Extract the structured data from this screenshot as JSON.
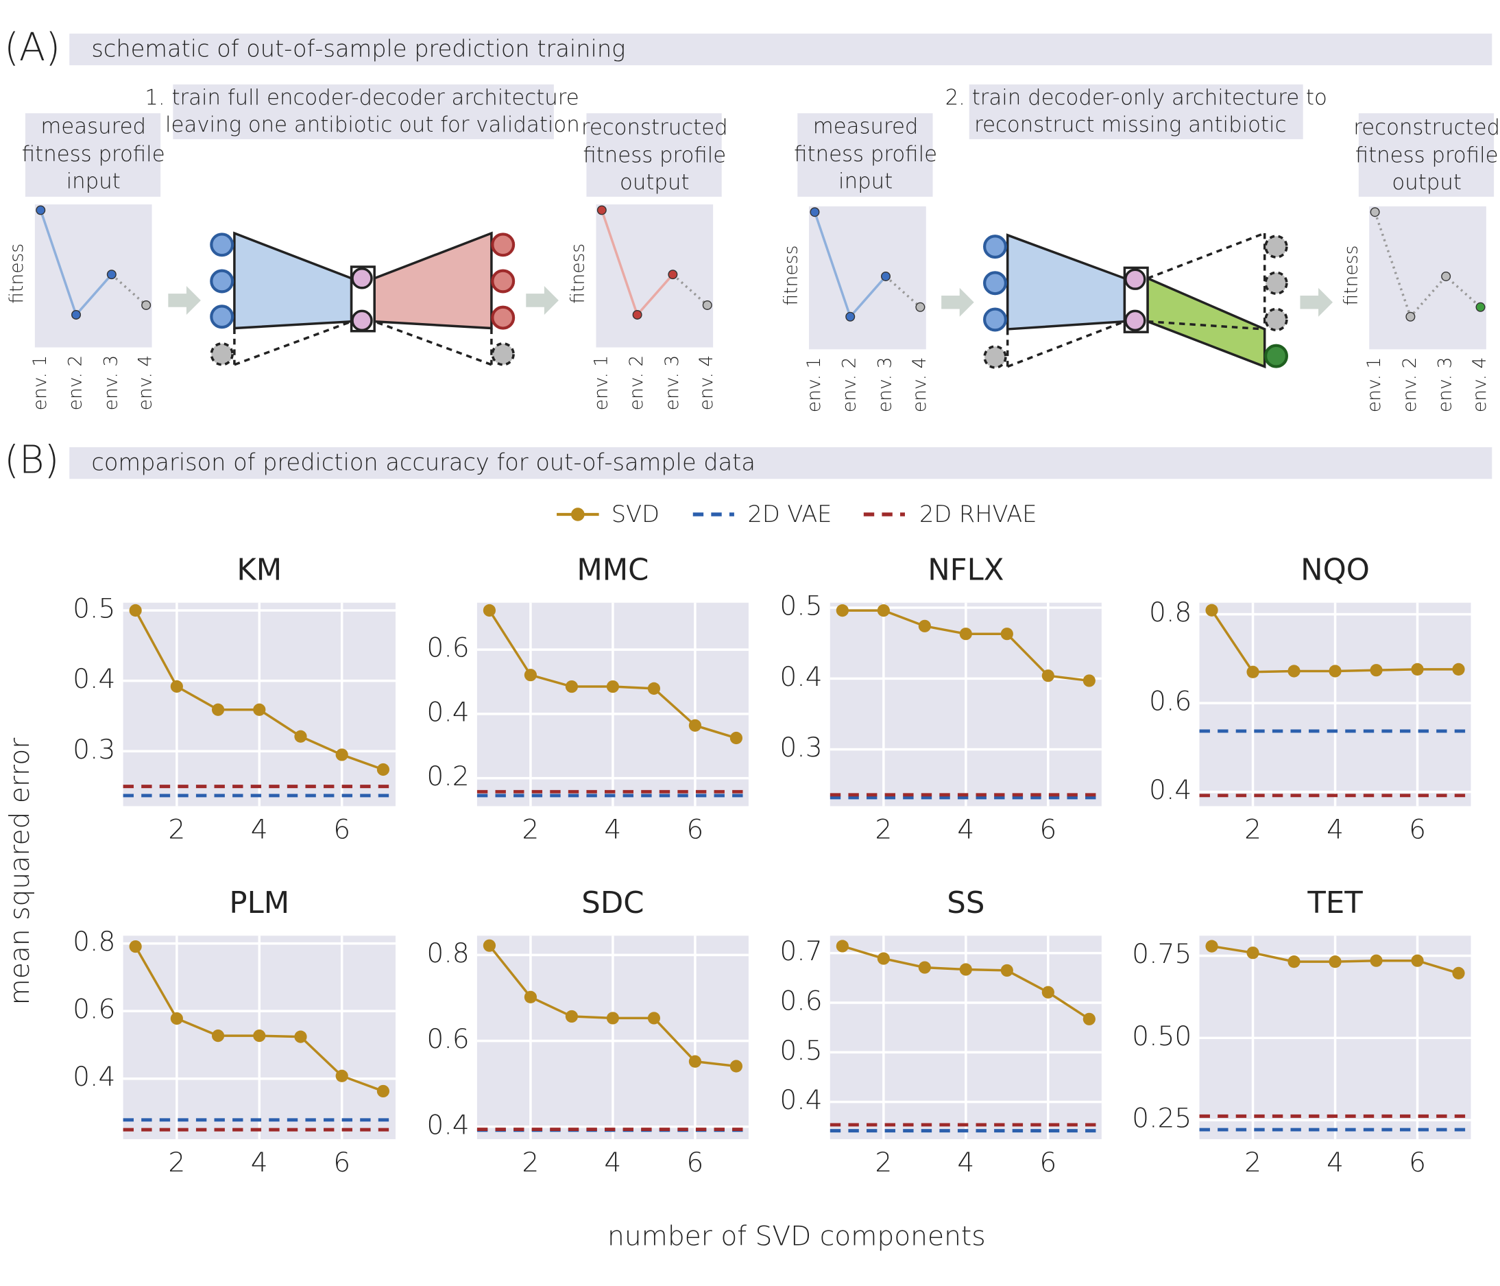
{
  "panel_a": {
    "label": "(A)",
    "title": "schematic of out-of-sample prediction training",
    "step1": [
      "1. train full encoder-decoder architecture",
      "leaving one antibiotic out for validation"
    ],
    "step2": [
      "2. train decoder-only architecture to",
      "reconstruct missing antibiotic"
    ],
    "input_label": [
      "measured",
      "fitness profile",
      "input"
    ],
    "output_label": [
      "reconstructed",
      "fitness profile",
      "output"
    ],
    "y_label": "fitness",
    "envs": [
      "env. 1",
      "env. 2",
      "env. 3",
      "env. 4"
    ]
  },
  "panel_b": {
    "label": "(B)",
    "title": "comparison of prediction accuracy for out-of-sample data",
    "x_label": "number of SVD components",
    "y_label": "mean squared error"
  },
  "chart_data": [
    {
      "type": "line",
      "title": "KM",
      "x": [
        1,
        2,
        3,
        4,
        5,
        6,
        7
      ],
      "xlim": [
        0.7,
        7.3
      ],
      "xticks": [
        2,
        4,
        6
      ],
      "ylim": [
        0.222,
        0.511
      ],
      "yticks": [
        0.3,
        0.4,
        0.5
      ],
      "grid": true,
      "series": [
        {
          "name": "SVD",
          "color": "#b8891c",
          "values": [
            0.5,
            0.392,
            0.359,
            0.359,
            0.321,
            0.295,
            0.274
          ]
        },
        {
          "name": "2D VAE",
          "color": "#2b5fad",
          "linestyle": "dashed",
          "value": 0.237
        },
        {
          "name": "2D RHVAE",
          "color": "#9e2a2a",
          "linestyle": "dashed",
          "value": 0.25
        }
      ]
    },
    {
      "type": "line",
      "title": "MMC",
      "x": [
        1,
        2,
        3,
        4,
        5,
        6,
        7
      ],
      "xlim": [
        0.7,
        7.3
      ],
      "xticks": [
        2,
        4,
        6
      ],
      "ylim": [
        0.113,
        0.746
      ],
      "yticks": [
        0.2,
        0.4,
        0.6
      ],
      "grid": true,
      "series": [
        {
          "name": "SVD",
          "color": "#b8891c",
          "values": [
            0.722,
            0.521,
            0.485,
            0.485,
            0.479,
            0.364,
            0.325
          ]
        },
        {
          "name": "2D VAE",
          "color": "#2b5fad",
          "linestyle": "dashed",
          "value": 0.146
        },
        {
          "name": "2D RHVAE",
          "color": "#9e2a2a",
          "linestyle": "dashed",
          "value": 0.158
        }
      ]
    },
    {
      "type": "line",
      "title": "NFLX",
      "x": [
        1,
        2,
        3,
        4,
        5,
        6,
        7
      ],
      "xlim": [
        0.7,
        7.3
      ],
      "xticks": [
        2,
        4,
        6
      ],
      "ylim": [
        0.22,
        0.507
      ],
      "yticks": [
        0.3,
        0.4,
        0.5
      ],
      "grid": true,
      "series": [
        {
          "name": "SVD",
          "color": "#b8891c",
          "values": [
            0.496,
            0.496,
            0.474,
            0.463,
            0.463,
            0.404,
            0.397
          ]
        },
        {
          "name": "2D VAE",
          "color": "#2b5fad",
          "linestyle": "dashed",
          "value": 0.232
        },
        {
          "name": "2D RHVAE",
          "color": "#9e2a2a",
          "linestyle": "dashed",
          "value": 0.236
        }
      ]
    },
    {
      "type": "line",
      "title": "NQO",
      "x": [
        1,
        2,
        3,
        4,
        5,
        6,
        7
      ],
      "xlim": [
        0.7,
        7.3
      ],
      "xticks": [
        2,
        4,
        6
      ],
      "ylim": [
        0.368,
        0.826
      ],
      "yticks": [
        0.4,
        0.6,
        0.8
      ],
      "grid": true,
      "series": [
        {
          "name": "SVD",
          "color": "#b8891c",
          "values": [
            0.809,
            0.67,
            0.672,
            0.672,
            0.674,
            0.676,
            0.676
          ]
        },
        {
          "name": "2D VAE",
          "color": "#2b5fad",
          "linestyle": "dashed",
          "value": 0.537
        },
        {
          "name": "2D RHVAE",
          "color": "#9e2a2a",
          "linestyle": "dashed",
          "value": 0.392
        }
      ]
    },
    {
      "type": "line",
      "title": "PLM",
      "x": [
        1,
        2,
        3,
        4,
        5,
        6,
        7
      ],
      "xlim": [
        0.7,
        7.3
      ],
      "xticks": [
        2,
        4,
        6
      ],
      "ylim": [
        0.221,
        0.823
      ],
      "yticks": [
        0.4,
        0.6,
        0.8
      ],
      "grid": true,
      "series": [
        {
          "name": "SVD",
          "color": "#b8891c",
          "values": [
            0.791,
            0.578,
            0.527,
            0.527,
            0.524,
            0.408,
            0.363
          ]
        },
        {
          "name": "2D VAE",
          "color": "#2b5fad",
          "linestyle": "dashed",
          "value": 0.278
        },
        {
          "name": "2D RHVAE",
          "color": "#9e2a2a",
          "linestyle": "dashed",
          "value": 0.249
        }
      ]
    },
    {
      "type": "line",
      "title": "SDC",
      "x": [
        1,
        2,
        3,
        4,
        5,
        6,
        7
      ],
      "xlim": [
        0.7,
        7.3
      ],
      "xticks": [
        2,
        4,
        6
      ],
      "ylim": [
        0.371,
        0.845
      ],
      "yticks": [
        0.4,
        0.6,
        0.8
      ],
      "grid": true,
      "series": [
        {
          "name": "SVD",
          "color": "#b8891c",
          "values": [
            0.822,
            0.702,
            0.657,
            0.653,
            0.653,
            0.552,
            0.541
          ]
        },
        {
          "name": "2D VAE",
          "color": "#2b5fad",
          "linestyle": "dashed",
          "value": 0.392
        },
        {
          "name": "2D RHVAE",
          "color": "#9e2a2a",
          "linestyle": "dashed",
          "value": 0.394
        }
      ]
    },
    {
      "type": "line",
      "title": "SS",
      "x": [
        1,
        2,
        3,
        4,
        5,
        6,
        7
      ],
      "xlim": [
        0.7,
        7.3
      ],
      "xticks": [
        2,
        4,
        6
      ],
      "ylim": [
        0.325,
        0.735
      ],
      "yticks": [
        0.4,
        0.5,
        0.6,
        0.7
      ],
      "grid": true,
      "series": [
        {
          "name": "SVD",
          "color": "#b8891c",
          "values": [
            0.714,
            0.689,
            0.671,
            0.667,
            0.665,
            0.621,
            0.567
          ]
        },
        {
          "name": "2D VAE",
          "color": "#2b5fad",
          "linestyle": "dashed",
          "value": 0.342
        },
        {
          "name": "2D RHVAE",
          "color": "#9e2a2a",
          "linestyle": "dashed",
          "value": 0.354
        }
      ]
    },
    {
      "type": "line",
      "title": "TET",
      "x": [
        1,
        2,
        3,
        4,
        5,
        6,
        7
      ],
      "xlim": [
        0.7,
        7.3
      ],
      "xticks": [
        2,
        4,
        6
      ],
      "ylim": [
        0.192,
        0.811
      ],
      "yticks": [
        0.25,
        {
          "value": 0.5,
          "label": "0.50"
        },
        0.75
      ],
      "grid": true,
      "series": [
        {
          "name": "SVD",
          "color": "#b8891c",
          "values": [
            0.779,
            0.759,
            0.732,
            0.732,
            0.735,
            0.735,
            0.697
          ]
        },
        {
          "name": "2D VAE",
          "color": "#2b5fad",
          "linestyle": "dashed",
          "value": 0.221
        },
        {
          "name": "2D RHVAE",
          "color": "#9e2a2a",
          "linestyle": "dashed",
          "value": 0.262
        }
      ]
    }
  ]
}
